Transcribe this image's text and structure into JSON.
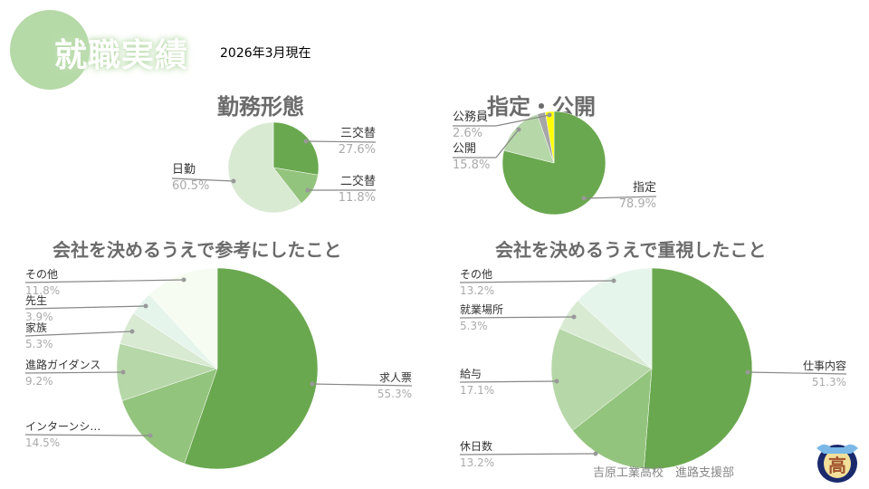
{
  "header": {
    "title": "就職実績",
    "date": "2026年3月現在"
  },
  "footer": {
    "text": "吉原工業高校　進路支援部"
  },
  "logo": {
    "text": "高"
  },
  "chart_data": [
    {
      "type": "pie",
      "title": "勤務形態",
      "slices": [
        {
          "label": "三交替",
          "value": 27.6,
          "pct": "27.6%",
          "color": "#6aa84f"
        },
        {
          "label": "二交替",
          "value": 11.8,
          "pct": "11.8%",
          "color": "#93c47d"
        },
        {
          "label": "日勤",
          "value": 60.5,
          "pct": "60.5%",
          "color": "#d9ead3"
        }
      ]
    },
    {
      "type": "pie",
      "title": "指定・公開",
      "slices": [
        {
          "label": "指定",
          "value": 78.9,
          "pct": "78.9%",
          "color": "#6aa84f"
        },
        {
          "label": "公開",
          "value": 15.8,
          "pct": "15.8%",
          "color": "#b6d7a8"
        },
        {
          "label": "公務員",
          "value": 2.6,
          "pct": "2.6%",
          "color": "#a6a6a6"
        },
        {
          "label": "",
          "value": 2.7,
          "pct": "",
          "color": "#ffff00"
        }
      ]
    },
    {
      "type": "pie",
      "title": "会社を決めるうえで参考にしたこと",
      "slices": [
        {
          "label": "求人票",
          "value": 55.3,
          "pct": "55.3%",
          "color": "#6aa84f"
        },
        {
          "label": "インターンシ…",
          "value": 14.5,
          "pct": "14.5%",
          "color": "#93c47d"
        },
        {
          "label": "進路ガイダンス",
          "value": 9.2,
          "pct": "9.2%",
          "color": "#b6d7a8"
        },
        {
          "label": "家族",
          "value": 5.3,
          "pct": "5.3%",
          "color": "#d9ead3"
        },
        {
          "label": "先生",
          "value": 3.9,
          "pct": "3.9%",
          "color": "#e6f5ec"
        },
        {
          "label": "その他",
          "value": 11.8,
          "pct": "11.8%",
          "color": "#f6fcf1"
        }
      ]
    },
    {
      "type": "pie",
      "title": "会社を決めるうえで重視したこと",
      "slices": [
        {
          "label": "仕事内容",
          "value": 51.3,
          "pct": "51.3%",
          "color": "#6aa84f"
        },
        {
          "label": "休日数",
          "value": 13.2,
          "pct": "13.2%",
          "color": "#93c47d"
        },
        {
          "label": "給与",
          "value": 17.1,
          "pct": "17.1%",
          "color": "#b6d7a8"
        },
        {
          "label": "就業場所",
          "value": 5.3,
          "pct": "5.3%",
          "color": "#d9ead3"
        },
        {
          "label": "その他",
          "value": 13.2,
          "pct": "13.2%",
          "color": "#e6f5ec"
        }
      ]
    }
  ]
}
